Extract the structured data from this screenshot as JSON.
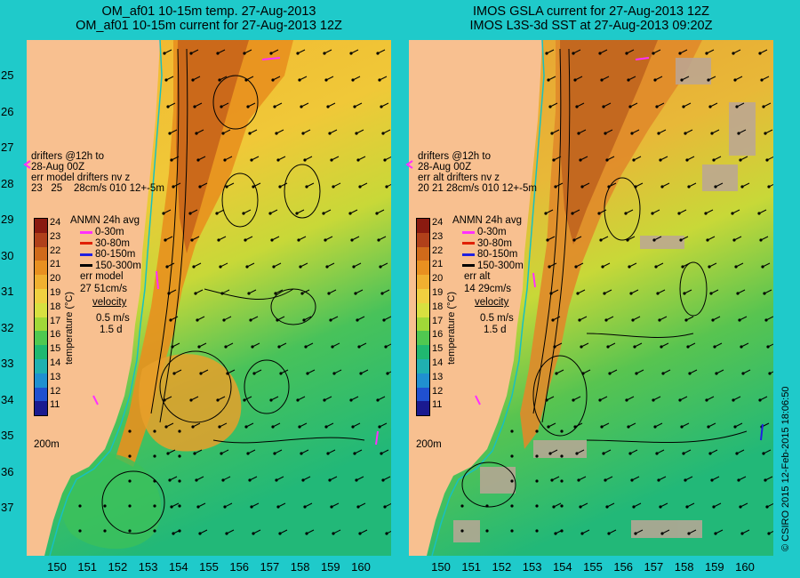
{
  "colors": {
    "background": "#1fcaca",
    "land": "#f8c090",
    "shelf": "#2ec0c8",
    "warm": "#e88a20",
    "warmer": "#c86010",
    "mid": "#f0c030",
    "cool": "#b8d830",
    "cold": "#40c060",
    "colder": "#20b878",
    "cloud": "#bba696"
  },
  "left": {
    "title1": "OM_af01 10-15m temp. 27-Aug-2013",
    "title2": "OM_af01 10-15m current for 27-Aug-2013 12Z",
    "drifters_line1": "drifters @12h to",
    "drifters_line2": "28-Aug 00Z",
    "err_header": "err model drifters nv z",
    "err_values": "23   25    28cm/s 010 12+-5m",
    "avg_label": "ANMN 24h avg",
    "err_label": "err model",
    "err_value": "27 51cm/s",
    "velocity_label": "velocity",
    "speed_label": "0.5 m/s",
    "duration_label": "1.5 d",
    "depth_label": "200m"
  },
  "right": {
    "title1": "IMOS GSLA current for 27-Aug-2013 12Z",
    "title2": "IMOS L3S-3d SST at 27-Aug-2013 09:20Z",
    "drifters_line1": "drifters @12h to",
    "drifters_line2": "28-Aug 00Z",
    "err_header": "err alt drifters nv z",
    "err_values": "20 21 28cm/s 010 12+-5m",
    "avg_label": "ANMN 24h avg",
    "err_label": "err alt",
    "err_value": "14 29cm/s",
    "velocity_label": "velocity",
    "speed_label": "0.5 m/s",
    "duration_label": "1.5 d",
    "depth_label": "200m"
  },
  "legend": [
    {
      "label": "0-30m",
      "color": "#ff30ff"
    },
    {
      "label": "30-80m",
      "color": "#e02000"
    },
    {
      "label": "80-150m",
      "color": "#2020e0"
    },
    {
      "label": "150-300m",
      "color": "#000000"
    }
  ],
  "colorbar": {
    "title": "temperature (°C)",
    "ticks": [
      "24",
      "23",
      "22",
      "21",
      "20",
      "19",
      "18",
      "17",
      "16",
      "15",
      "14",
      "13",
      "12",
      "11"
    ],
    "colors": [
      "#8a1a10",
      "#b0401a",
      "#d06a1a",
      "#e89020",
      "#f0b030",
      "#f0d040",
      "#d8e040",
      "#a0d838",
      "#50c850",
      "#20b870",
      "#20b0b0",
      "#2090d0",
      "#2050d0",
      "#1a1a90"
    ]
  },
  "lat_labels": [
    "25",
    "26",
    "27",
    "28",
    "29",
    "30",
    "31",
    "32",
    "33",
    "34",
    "35",
    "36",
    "37"
  ],
  "lon_labels_left": [
    "150",
    "151",
    "152",
    "153",
    "154",
    "155",
    "156",
    "157",
    "158",
    "159",
    "160"
  ],
  "lon_labels_right": [
    "150",
    "151",
    "152",
    "153",
    "154",
    "155",
    "156",
    "157",
    "158",
    "159",
    "160"
  ],
  "copyright": "© CSIRO 2015   12-Feb-2015 18:06:50"
}
